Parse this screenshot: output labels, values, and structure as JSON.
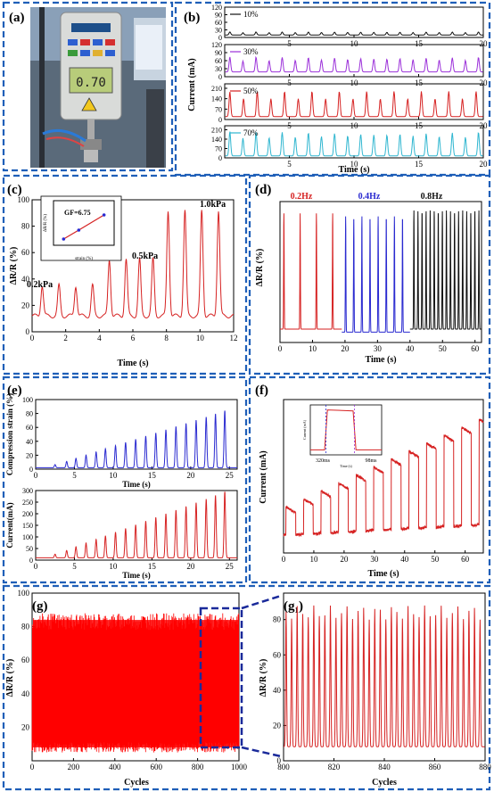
{
  "panels": {
    "a": {
      "label": "(a)"
    },
    "b": {
      "label": "(b)"
    },
    "c": {
      "label": "(c)"
    },
    "d": {
      "label": "(d)"
    },
    "e": {
      "label": "(e)"
    },
    "f": {
      "label": "(f)"
    },
    "g": {
      "label": "(g)"
    },
    "g1": {
      "label": "(g₁)"
    }
  },
  "device_photo": {
    "display_reading": "0.70"
  },
  "colors": {
    "red": "#d62222",
    "purple": "#9b30d9",
    "cyan": "#2fb6d0",
    "blue": "#2a2ad0",
    "black": "#111111",
    "frame": "#1f5fb8"
  },
  "chart_data": [
    {
      "id": "b",
      "type": "line",
      "xlabel": "Time (s)",
      "ylabel": "Current (mA)",
      "xlim": [
        0,
        20
      ],
      "xticks": [
        5,
        10,
        15,
        20
      ],
      "series": [
        {
          "name": "10%",
          "yticks": [
            0,
            30,
            60,
            90,
            120
          ],
          "ylim": [
            0,
            120
          ],
          "baseline": 10,
          "peak": 22,
          "period": 1.1,
          "color": "#111111"
        },
        {
          "name": "30%",
          "yticks": [
            0,
            30,
            60,
            90,
            120
          ],
          "ylim": [
            0,
            120
          ],
          "baseline": 18,
          "peak": 75,
          "period": 1.1,
          "color": "#9b30d9"
        },
        {
          "name": "50%",
          "yticks": [
            0,
            70,
            140,
            210
          ],
          "ylim": [
            0,
            240
          ],
          "baseline": 20,
          "peak": 190,
          "period": 1.15,
          "color": "#d62222"
        },
        {
          "name": "70%",
          "yticks": [
            0,
            70,
            140,
            210
          ],
          "ylim": [
            0,
            240
          ],
          "baseline": 15,
          "peak": 200,
          "period": 1.1,
          "color": "#2fb6d0"
        }
      ]
    },
    {
      "id": "c",
      "type": "line",
      "xlabel": "Time (s)",
      "ylabel": "ΔR/R (%)",
      "xlim": [
        0,
        12
      ],
      "ylim": [
        0,
        100
      ],
      "xticks": [
        0,
        2,
        4,
        6,
        8,
        10,
        12
      ],
      "yticks": [
        0,
        20,
        40,
        60,
        80,
        100
      ],
      "annotations": [
        "0.2kPa",
        "0.5kPa",
        "1.0kPa"
      ],
      "groups": [
        {
          "pressure": "0.2kPa",
          "peaks_t": [
            0.6,
            1.6,
            2.6,
            3.6
          ],
          "peak": 35
        },
        {
          "pressure": "0.5kPa",
          "peaks_t": [
            4.6,
            5.6,
            6.4,
            7.2
          ],
          "peak": 55
        },
        {
          "pressure": "1.0kPa",
          "peaks_t": [
            8.1,
            9.1,
            10.1,
            11.1
          ],
          "peak": 92
        }
      ],
      "baseline": 12,
      "color": "#d62222",
      "inset": {
        "label": "GF=6.75",
        "xlabel": "strain (%)",
        "ylabel": "ΔR/R (%)",
        "x": [
          2,
          5,
          10
        ],
        "y": [
          14,
          34,
          68
        ]
      }
    },
    {
      "id": "d",
      "type": "line",
      "xlabel": "Time (s)",
      "ylabel": "ΔR/R (%)",
      "xlim": [
        0,
        62
      ],
      "ylim": [
        -5,
        90
      ],
      "xticks": [
        0,
        10,
        20,
        30,
        40,
        50,
        60
      ],
      "series": [
        {
          "name": "0.2Hz",
          "range": [
            0,
            19
          ],
          "period": 5,
          "peak": 78,
          "color": "#d62222"
        },
        {
          "name": "0.4Hz",
          "range": [
            19,
            40
          ],
          "period": 2.5,
          "peak": 78,
          "color": "#2a2ad0"
        },
        {
          "name": "0.8Hz",
          "range": [
            40,
            62
          ],
          "period": 1.25,
          "peak": 80,
          "color": "#111111"
        }
      ]
    },
    {
      "id": "e-top",
      "type": "line",
      "xlabel": "Time (s)",
      "ylabel": "Compression strain (%)",
      "xlim": [
        0,
        26
      ],
      "ylim": [
        0,
        100
      ],
      "xticks": [
        0,
        5,
        10,
        15,
        20,
        25
      ],
      "yticks": [
        0,
        20,
        40,
        60,
        80,
        100
      ],
      "peaks_t": [
        2.5,
        4.0,
        5.2,
        6.5,
        7.8,
        9.0,
        10.3,
        11.6,
        12.9,
        14.2,
        15.5,
        16.8,
        18.1,
        19.4,
        20.7,
        22.0,
        23.2,
        24.4
      ],
      "peak_max": 82,
      "color": "#2a2ad0"
    },
    {
      "id": "e-bottom",
      "type": "line",
      "xlabel": "Time (s)",
      "ylabel": "Current(mA)",
      "xlim": [
        0,
        26
      ],
      "ylim": [
        0,
        300
      ],
      "xticks": [
        0,
        5,
        10,
        15,
        20,
        25
      ],
      "yticks": [
        0,
        50,
        100,
        150,
        200,
        250,
        300
      ],
      "peak_max": 285,
      "color": "#d62222"
    },
    {
      "id": "f",
      "type": "line",
      "xlabel": "Time (s)",
      "ylabel": "Current (mA)",
      "xlim": [
        0,
        66
      ],
      "ylim": [
        0,
        500
      ],
      "xticks": [
        0,
        10,
        20,
        30,
        40,
        50,
        60
      ],
      "yticks": [
        0,
        100,
        200,
        300,
        400,
        500
      ],
      "color": "#d62222",
      "inset": {
        "xlabel": "Time (s)",
        "ylabel": "Current (mA)",
        "annotations": [
          "320ms",
          "98ms"
        ]
      }
    },
    {
      "id": "g",
      "type": "line",
      "xlabel": "Cycles",
      "ylabel": "ΔR/R (%)",
      "xlim": [
        0,
        1000
      ],
      "ylim": [
        0,
        100
      ],
      "xticks": [
        0,
        200,
        400,
        600,
        800,
        1000
      ],
      "yticks": [
        20,
        40,
        60,
        80,
        100
      ],
      "color": "#ff0000"
    },
    {
      "id": "g1",
      "type": "line",
      "xlabel": "Cycles",
      "ylabel": "ΔR/R (%)",
      "xlim": [
        800,
        880
      ],
      "ylim": [
        0,
        95
      ],
      "xticks": [
        800,
        820,
        840,
        860,
        880
      ],
      "yticks": [
        0,
        20,
        40,
        60,
        80
      ],
      "color": "#d62222"
    }
  ]
}
